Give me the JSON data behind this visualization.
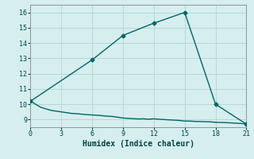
{
  "xlabel": "Humidex (Indice chaleur)",
  "background_color": "#d6eeee",
  "grid_color": "#b8d8d8",
  "line_color": "#006666",
  "line1_x": [
    0,
    6,
    9,
    12,
    15,
    18,
    21
  ],
  "line1_y": [
    10.2,
    12.9,
    14.5,
    15.3,
    16.0,
    10.0,
    8.7
  ],
  "line1_marker_x": [
    0,
    6,
    9,
    12,
    15,
    18,
    21
  ],
  "line1_marker_y": [
    10.2,
    12.9,
    14.5,
    15.3,
    16.0,
    10.0,
    8.7
  ],
  "line2_x": [
    0,
    0.5,
    1,
    1.5,
    2,
    2.5,
    3,
    3.5,
    4,
    4.5,
    5,
    5.5,
    6,
    6.5,
    7,
    7.5,
    8,
    8.5,
    9,
    9.5,
    10,
    10.5,
    11,
    11.5,
    12,
    12.5,
    13,
    13.5,
    14,
    14.5,
    15,
    15.5,
    16,
    16.5,
    17,
    17.5,
    18,
    18.5,
    19,
    19.5,
    20,
    20.5,
    21
  ],
  "line2_y": [
    10.2,
    10.0,
    9.8,
    9.7,
    9.6,
    9.55,
    9.5,
    9.45,
    9.4,
    9.38,
    9.35,
    9.32,
    9.3,
    9.28,
    9.25,
    9.22,
    9.2,
    9.15,
    9.1,
    9.08,
    9.06,
    9.04,
    9.05,
    9.02,
    9.05,
    9.02,
    9.0,
    8.98,
    8.96,
    8.94,
    8.9,
    8.9,
    8.88,
    8.87,
    8.86,
    8.85,
    8.82,
    8.81,
    8.8,
    8.78,
    8.76,
    8.74,
    8.72
  ],
  "xlim": [
    0,
    21
  ],
  "ylim": [
    8.5,
    16.5
  ],
  "xticks": [
    0,
    3,
    6,
    9,
    12,
    15,
    18,
    21
  ],
  "yticks": [
    9,
    10,
    11,
    12,
    13,
    14,
    15,
    16
  ],
  "marker": "D",
  "marker_size": 2.5,
  "line_width": 1.0,
  "tick_fontsize": 6,
  "xlabel_fontsize": 7
}
